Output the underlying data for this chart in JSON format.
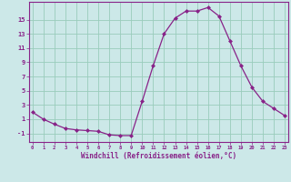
{
  "x": [
    0,
    1,
    2,
    3,
    4,
    5,
    6,
    7,
    8,
    9,
    10,
    11,
    12,
    13,
    14,
    15,
    16,
    17,
    18,
    19,
    20,
    21,
    22,
    23
  ],
  "y": [
    2,
    1,
    0.3,
    -0.3,
    -0.5,
    -0.6,
    -0.7,
    -1.2,
    -1.3,
    -1.3,
    3.5,
    8.5,
    13,
    15.2,
    16.2,
    16.2,
    16.7,
    15.5,
    12,
    8.5,
    5.5,
    3.5,
    2.5,
    1.5
  ],
  "line_color": "#882288",
  "marker_color": "#882288",
  "bg_color": "#cce8e8",
  "grid_color": "#99ccbb",
  "xlabel": "Windchill (Refroidissement éolien,°C)",
  "ylabel_ticks": [
    -1,
    1,
    3,
    5,
    7,
    9,
    11,
    13,
    15
  ],
  "xticks": [
    0,
    1,
    2,
    3,
    4,
    5,
    6,
    7,
    8,
    9,
    10,
    11,
    12,
    13,
    14,
    15,
    16,
    17,
    18,
    19,
    20,
    21,
    22,
    23
  ],
  "ylim": [
    -2.2,
    17.5
  ],
  "xlim": [
    -0.3,
    23.3
  ],
  "font_color": "#882288"
}
